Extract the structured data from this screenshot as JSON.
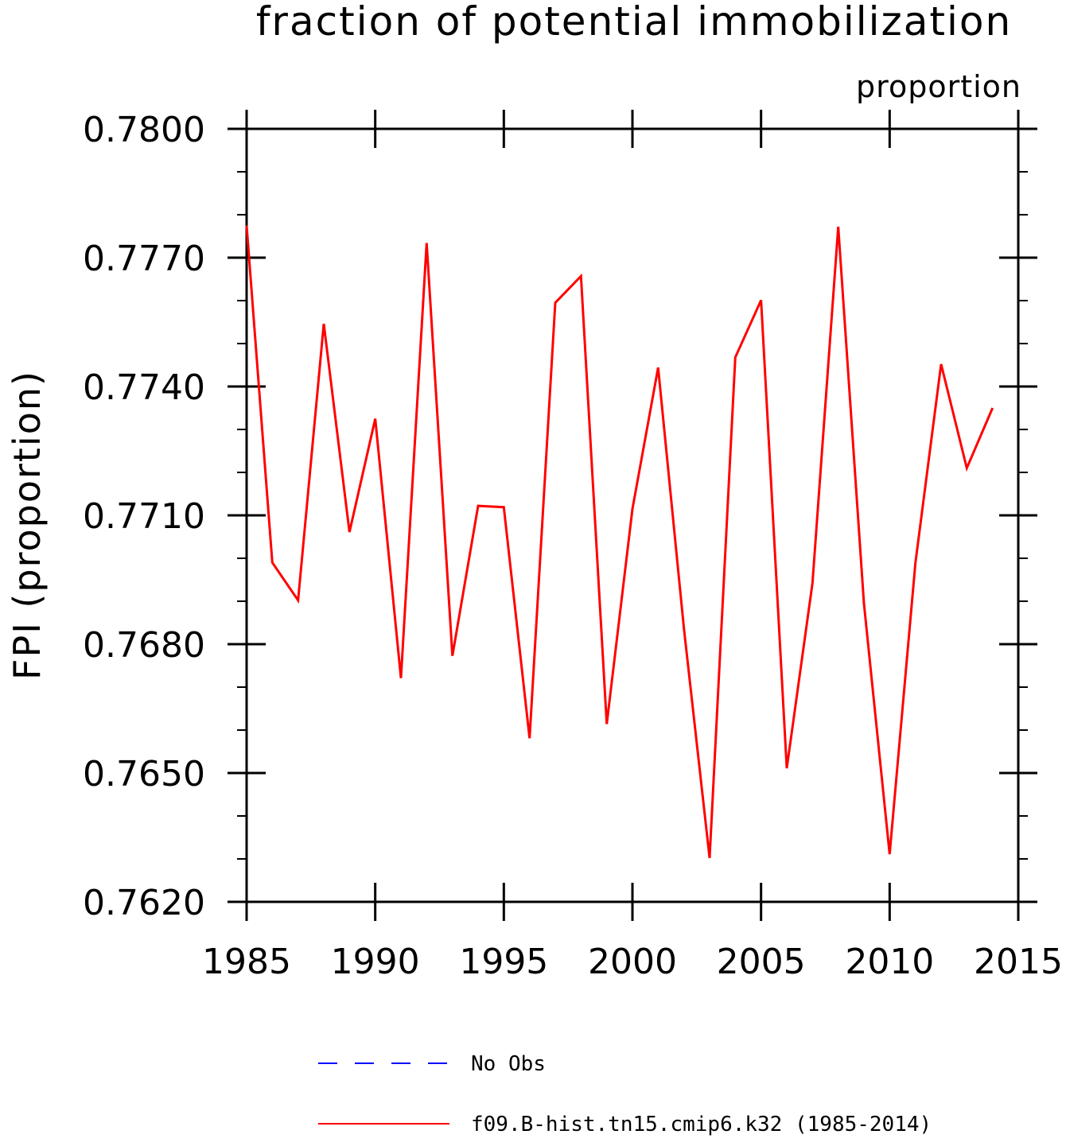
{
  "chart_data": {
    "type": "line",
    "title": "fraction of potential immobilization",
    "units_label": "proportion",
    "ylabel": "FPI  (proportion)",
    "xlabel": "",
    "xlim": [
      1985,
      2015
    ],
    "ylim": [
      0.762,
      0.78
    ],
    "x_ticks": [
      1985,
      1990,
      1995,
      2000,
      2005,
      2010,
      2015
    ],
    "x_tick_labels": [
      "1985",
      "1990",
      "1995",
      "2000",
      "2005",
      "2010",
      "2015"
    ],
    "y_ticks": [
      0.762,
      0.765,
      0.768,
      0.771,
      0.774,
      0.777,
      0.78
    ],
    "y_tick_labels": [
      "0.7620",
      "0.7650",
      "0.7680",
      "0.7710",
      "0.7740",
      "0.7770",
      "0.7800"
    ],
    "grid": false,
    "legend_position": "bottom",
    "series": [
      {
        "name": "No Obs",
        "color": "#0000ff",
        "style": "dashed",
        "x": [],
        "y": []
      },
      {
        "name": "f09.B-hist.tn15.cmip6.k32 (1985-2014)",
        "color": "#ff0000",
        "style": "solid",
        "x": [
          1985,
          1986,
          1987,
          1988,
          1989,
          1990,
          1991,
          1992,
          1993,
          1994,
          1995,
          1996,
          1997,
          1998,
          1999,
          2000,
          2001,
          2002,
          2003,
          2004,
          2005,
          2006,
          2007,
          2008,
          2009,
          2010,
          2011,
          2012,
          2013,
          2014
        ],
        "y": [
          0.77775,
          0.7699,
          0.76902,
          0.77546,
          0.77061,
          0.77325,
          0.76721,
          0.77734,
          0.76773,
          0.77122,
          0.77119,
          0.76581,
          0.77595,
          0.77657,
          0.76614,
          0.77115,
          0.77444,
          0.76837,
          0.76302,
          0.77468,
          0.77601,
          0.76511,
          0.76942,
          0.77772,
          0.76895,
          0.76311,
          0.76989,
          0.77452,
          0.7721,
          0.7735
        ]
      }
    ]
  }
}
